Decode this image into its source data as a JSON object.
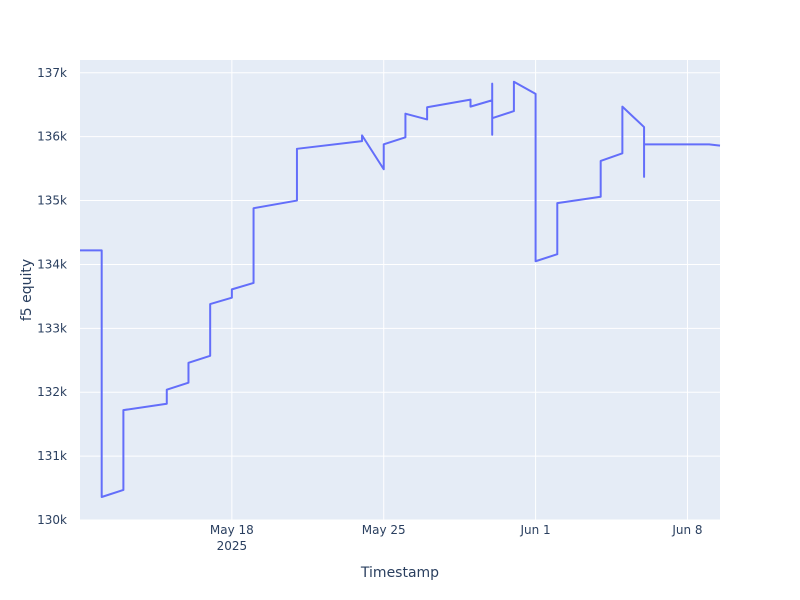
{
  "chart_data": {
    "type": "line",
    "xlabel": "Timestamp",
    "ylabel": "f5 equity",
    "ylim": [
      130000,
      137200
    ],
    "xlim": [
      "2025-05-11T00:00",
      "2025-06-09T12:00"
    ],
    "yticks": [
      {
        "value": 130000,
        "label": "130k"
      },
      {
        "value": 131000,
        "label": "131k"
      },
      {
        "value": 132000,
        "label": "132k"
      },
      {
        "value": 133000,
        "label": "133k"
      },
      {
        "value": 134000,
        "label": "134k"
      },
      {
        "value": 135000,
        "label": "135k"
      },
      {
        "value": 136000,
        "label": "136k"
      },
      {
        "value": 137000,
        "label": "137k"
      }
    ],
    "xticks": [
      {
        "value": "2025-05-18",
        "label": "May 18",
        "sublabel": "2025"
      },
      {
        "value": "2025-05-25",
        "label": "May 25"
      },
      {
        "value": "2025-06-01",
        "label": "Jun 1"
      },
      {
        "value": "2025-06-08",
        "label": "Jun 8"
      }
    ],
    "grid": true,
    "line_color": "#636efa",
    "background": "#e5ecf6",
    "series": [
      {
        "x": [
          "2025-05-11T00:00",
          "2025-05-12T00:00",
          "2025-05-12T00:00",
          "2025-05-13T00:00",
          "2025-05-13T00:00",
          "2025-05-15T00:00",
          "2025-05-15T00:00",
          "2025-05-16T00:00",
          "2025-05-16T00:00",
          "2025-05-17T00:00",
          "2025-05-17T00:00",
          "2025-05-18T00:00",
          "2025-05-18T00:00",
          "2025-05-19T00:00",
          "2025-05-19T00:00",
          "2025-05-21T00:00",
          "2025-05-21T00:00",
          "2025-05-24T00:00",
          "2025-05-24T00:00",
          "2025-05-25T00:00",
          "2025-05-25T00:00",
          "2025-05-26T00:00",
          "2025-05-26T00:00",
          "2025-05-27T00:00",
          "2025-05-27T00:00",
          "2025-05-29T00:00",
          "2025-05-29T00:00",
          "2025-05-30T00:00",
          "2025-05-30T00:00",
          "2025-05-30T00:00",
          "2025-05-30T00:00",
          "2025-05-31T00:00",
          "2025-05-31T00:00",
          "2025-06-01T00:00",
          "2025-06-01T00:00",
          "2025-06-02T00:00",
          "2025-06-02T00:00",
          "2025-06-04T00:00",
          "2025-06-04T00:00",
          "2025-06-05T00:00",
          "2025-06-05T00:00",
          "2025-06-06T00:00",
          "2025-06-06T00:00",
          "2025-06-06T00:00",
          "2025-06-09T00:00",
          "2025-06-09T12:00"
        ],
        "y": [
          134220,
          134220,
          130360,
          130470,
          131720,
          131820,
          132040,
          132150,
          132460,
          132570,
          133380,
          133480,
          133610,
          133710,
          134880,
          135000,
          135810,
          135930,
          136020,
          135490,
          135880,
          135990,
          136360,
          136270,
          136460,
          136580,
          136470,
          136570,
          136830,
          136030,
          136290,
          136400,
          136860,
          136670,
          134050,
          134160,
          134960,
          135060,
          135620,
          135740,
          136470,
          136150,
          135370,
          135880,
          135880,
          135860
        ]
      }
    ]
  }
}
